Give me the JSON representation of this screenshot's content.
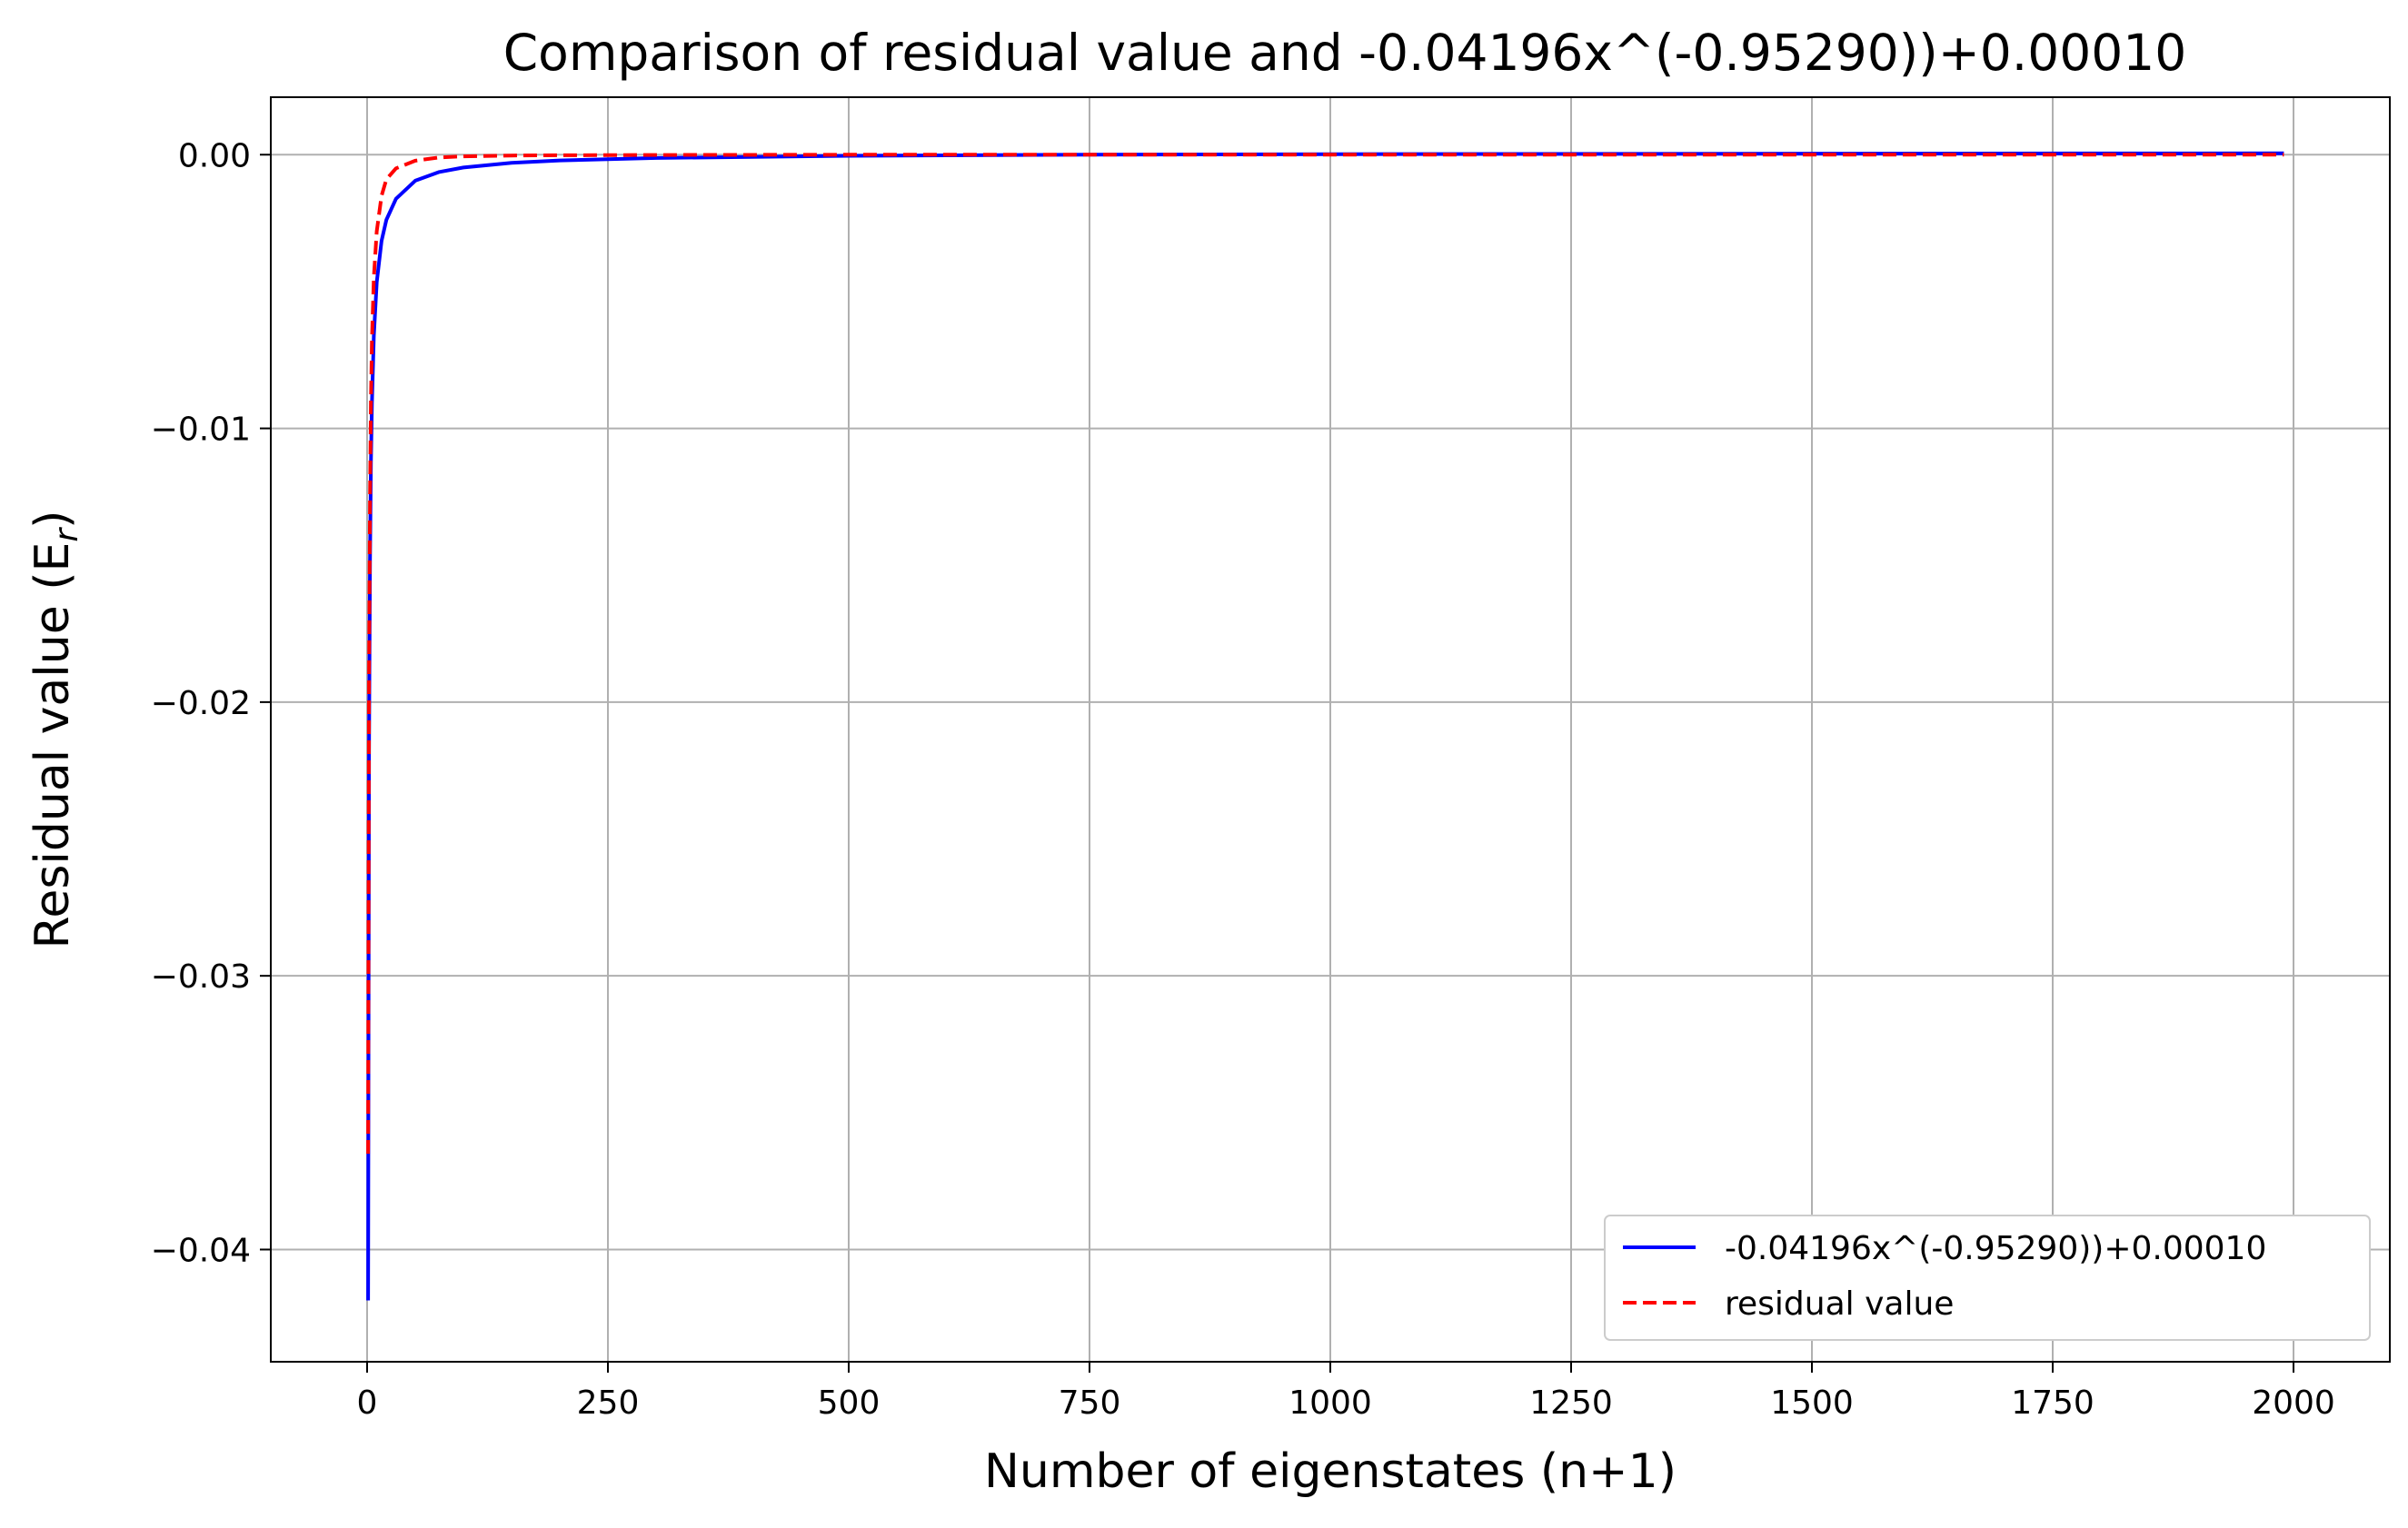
{
  "chart_data": {
    "type": "line",
    "title": "Comparison of residual value and -0.04196x^(-0.95290))+0.00010",
    "xlabel": "Number of eigenstates (n+1)",
    "ylabel": "Residual value (E",
    "ylabel_sub": "r",
    "ylabel_close": ")",
    "xlim": [
      -100,
      2100
    ],
    "ylim": [
      -0.0441,
      0.0021
    ],
    "xticks": [
      0,
      250,
      500,
      750,
      1000,
      1250,
      1500,
      1750,
      2000
    ],
    "xtick_labels": [
      "0",
      "250",
      "500",
      "750",
      "1000",
      "1250",
      "1500",
      "1750",
      "2000"
    ],
    "yticks": [
      0.0,
      -0.01,
      -0.02,
      -0.03,
      -0.04
    ],
    "ytick_labels": [
      "0.00",
      "−0.01",
      "−0.02",
      "−0.03",
      "−0.04"
    ],
    "grid": true,
    "legend_position": "lower-right",
    "series": [
      {
        "name": "-0.04196x^(-0.95290))+0.00010",
        "color": "#0000ff",
        "style": "solid",
        "x": [
          1,
          2,
          3,
          4,
          5,
          7,
          10,
          15,
          20,
          30,
          50,
          75,
          100,
          150,
          200,
          300,
          500,
          750,
          1000,
          1500,
          1990
        ],
        "y": [
          -0.04186,
          -0.02171,
          -0.01477,
          -0.01124,
          -0.00909,
          -0.00662,
          -0.00466,
          -0.00315,
          -0.00238,
          -0.00161,
          -0.00095,
          -0.00063,
          -0.00047,
          -0.0003,
          -0.00021,
          -0.00012,
          -4e-05,
          0.0,
          2e-05,
          4e-05,
          5e-05
        ]
      },
      {
        "name": "residual value",
        "color": "#ff0000",
        "style": "dashed",
        "x": [
          1,
          2,
          3,
          4,
          5,
          7,
          10,
          15,
          20,
          30,
          50,
          75,
          100,
          150,
          200,
          300,
          500,
          750,
          1000,
          1500,
          1990
        ],
        "y": [
          -0.0365,
          -0.019,
          -0.0125,
          -0.009,
          -0.0068,
          -0.0045,
          -0.0028,
          -0.0015,
          -0.0009,
          -0.0005,
          -0.00022,
          -0.0001,
          -6e-05,
          -3e-05,
          -2e-05,
          -1e-05,
          0.0,
          0.0,
          0.0,
          0.0,
          0.0
        ]
      }
    ]
  }
}
